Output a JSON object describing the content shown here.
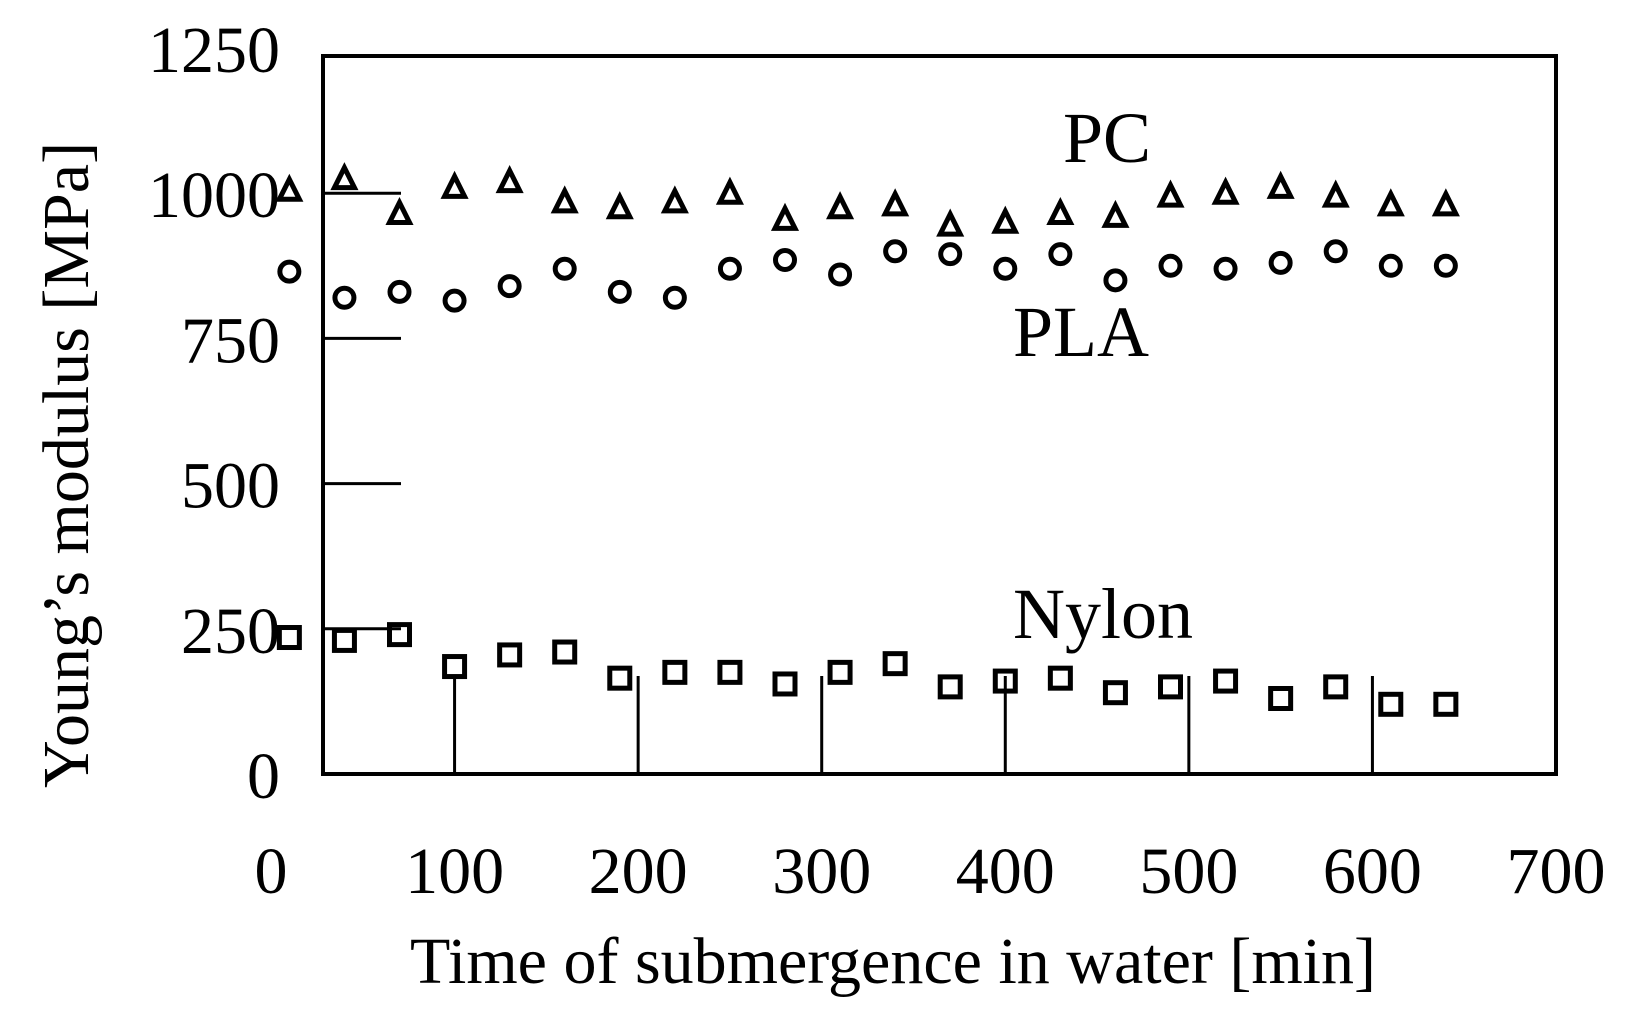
{
  "chart_data": {
    "type": "scatter",
    "title": "",
    "xlabel": "Time of submergence in water [min]",
    "ylabel": "Young’s modulus [MPa]",
    "xlim": [
      0,
      700
    ],
    "ylim": [
      0,
      1250
    ],
    "x_ticks": [
      0,
      100,
      200,
      300,
      400,
      500,
      600,
      700
    ],
    "y_ticks": [
      0,
      250,
      500,
      750,
      1000,
      1250
    ],
    "grid": false,
    "x": [
      10,
      40,
      70,
      100,
      130,
      160,
      190,
      220,
      250,
      280,
      310,
      340,
      370,
      400,
      430,
      460,
      490,
      520,
      550,
      580,
      610,
      640
    ],
    "series": [
      {
        "name": "PC",
        "marker": "triangle",
        "values": [
          1005,
          1025,
          965,
          1010,
          1020,
          985,
          975,
          985,
          1000,
          955,
          975,
          980,
          945,
          950,
          965,
          960,
          995,
          1000,
          1010,
          995,
          980,
          980
        ]
      },
      {
        "name": "PLA",
        "marker": "circle",
        "values": [
          865,
          820,
          830,
          815,
          840,
          870,
          830,
          820,
          870,
          885,
          860,
          900,
          895,
          870,
          895,
          850,
          875,
          870,
          880,
          900,
          875,
          875
        ]
      },
      {
        "name": "Nylon",
        "marker": "square",
        "values": [
          235,
          230,
          240,
          185,
          205,
          210,
          165,
          175,
          175,
          155,
          175,
          190,
          150,
          160,
          165,
          140,
          150,
          160,
          130,
          150,
          120,
          120
        ]
      }
    ],
    "annotations": [
      "PC",
      "PLA",
      "Nylon"
    ]
  }
}
